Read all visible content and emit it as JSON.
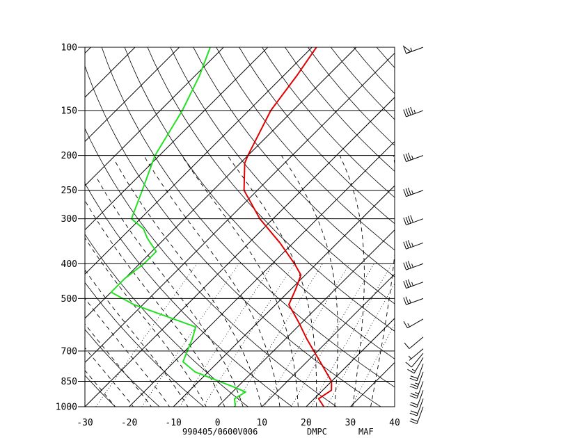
{
  "chart_data": {
    "type": "line",
    "title": "",
    "footer": {
      "datetime": "990405/0600V006",
      "source": "DMPC",
      "station": "MAF"
    },
    "xlabel": "",
    "ylabel": "",
    "xlim": [
      -30,
      40
    ],
    "ylim": [
      1000,
      100
    ],
    "y_scale": "log",
    "grid": true,
    "x_ticks": [
      "-30",
      "-20",
      "-10",
      "0",
      "10",
      "20",
      "30",
      "40"
    ],
    "pressure_levels": [
      "100",
      "150",
      "200",
      "250",
      "300",
      "400",
      "500",
      "700",
      "850",
      "1000"
    ],
    "series": [
      {
        "name": "",
        "color": "#e00000",
        "points": [
          {
            "p": 1000,
            "t": 24
          },
          {
            "p": 950,
            "t": 21
          },
          {
            "p": 900,
            "t": 22
          },
          {
            "p": 850,
            "t": 20
          },
          {
            "p": 750,
            "t": 13
          },
          {
            "p": 650,
            "t": 5
          },
          {
            "p": 580,
            "t": -1
          },
          {
            "p": 520,
            "t": -7
          },
          {
            "p": 470,
            "t": -9
          },
          {
            "p": 430,
            "t": -11
          },
          {
            "p": 400,
            "t": -15
          },
          {
            "p": 350,
            "t": -23
          },
          {
            "p": 300,
            "t": -33
          },
          {
            "p": 250,
            "t": -43
          },
          {
            "p": 210,
            "t": -49
          },
          {
            "p": 200,
            "t": -50
          },
          {
            "p": 150,
            "t": -55
          },
          {
            "p": 120,
            "t": -57
          },
          {
            "p": 100,
            "t": -59
          }
        ]
      },
      {
        "name": "",
        "color": "#22e022",
        "points": [
          {
            "p": 1000,
            "t": 4
          },
          {
            "p": 950,
            "t": 2
          },
          {
            "p": 910,
            "t": 3
          },
          {
            "p": 880,
            "t": -1
          },
          {
            "p": 800,
            "t": -13
          },
          {
            "p": 750,
            "t": -18
          },
          {
            "p": 650,
            "t": -21
          },
          {
            "p": 600,
            "t": -23
          },
          {
            "p": 520,
            "t": -42
          },
          {
            "p": 480,
            "t": -50
          },
          {
            "p": 440,
            "t": -50
          },
          {
            "p": 400,
            "t": -49
          },
          {
            "p": 370,
            "t": -49
          },
          {
            "p": 340,
            "t": -54
          },
          {
            "p": 320,
            "t": -57
          },
          {
            "p": 300,
            "t": -62
          },
          {
            "p": 250,
            "t": -66
          },
          {
            "p": 200,
            "t": -71
          },
          {
            "p": 150,
            "t": -75
          },
          {
            "p": 120,
            "t": -79
          },
          {
            "p": 100,
            "t": -83
          }
        ]
      }
    ],
    "wind_barbs": [
      {
        "p": 100,
        "dir": 250,
        "kt": 55
      },
      {
        "p": 150,
        "dir": 250,
        "kt": 45
      },
      {
        "p": 200,
        "dir": 250,
        "kt": 35
      },
      {
        "p": 250,
        "dir": 250,
        "kt": 35
      },
      {
        "p": 300,
        "dir": 250,
        "kt": 40
      },
      {
        "p": 350,
        "dir": 250,
        "kt": 35
      },
      {
        "p": 400,
        "dir": 250,
        "kt": 35
      },
      {
        "p": 450,
        "dir": 250,
        "kt": 35
      },
      {
        "p": 500,
        "dir": 250,
        "kt": 25
      },
      {
        "p": 570,
        "dir": 240,
        "kt": 15
      },
      {
        "p": 640,
        "dir": 230,
        "kt": 10
      },
      {
        "p": 690,
        "dir": 230,
        "kt": 5
      },
      {
        "p": 710,
        "dir": 220,
        "kt": 10
      },
      {
        "p": 730,
        "dir": 210,
        "kt": 15
      },
      {
        "p": 760,
        "dir": 200,
        "kt": 20
      },
      {
        "p": 800,
        "dir": 200,
        "kt": 25
      },
      {
        "p": 850,
        "dir": 200,
        "kt": 25
      },
      {
        "p": 900,
        "dir": 200,
        "kt": 20
      },
      {
        "p": 950,
        "dir": 200,
        "kt": 20
      },
      {
        "p": 1000,
        "dir": 200,
        "kt": 20
      }
    ]
  }
}
